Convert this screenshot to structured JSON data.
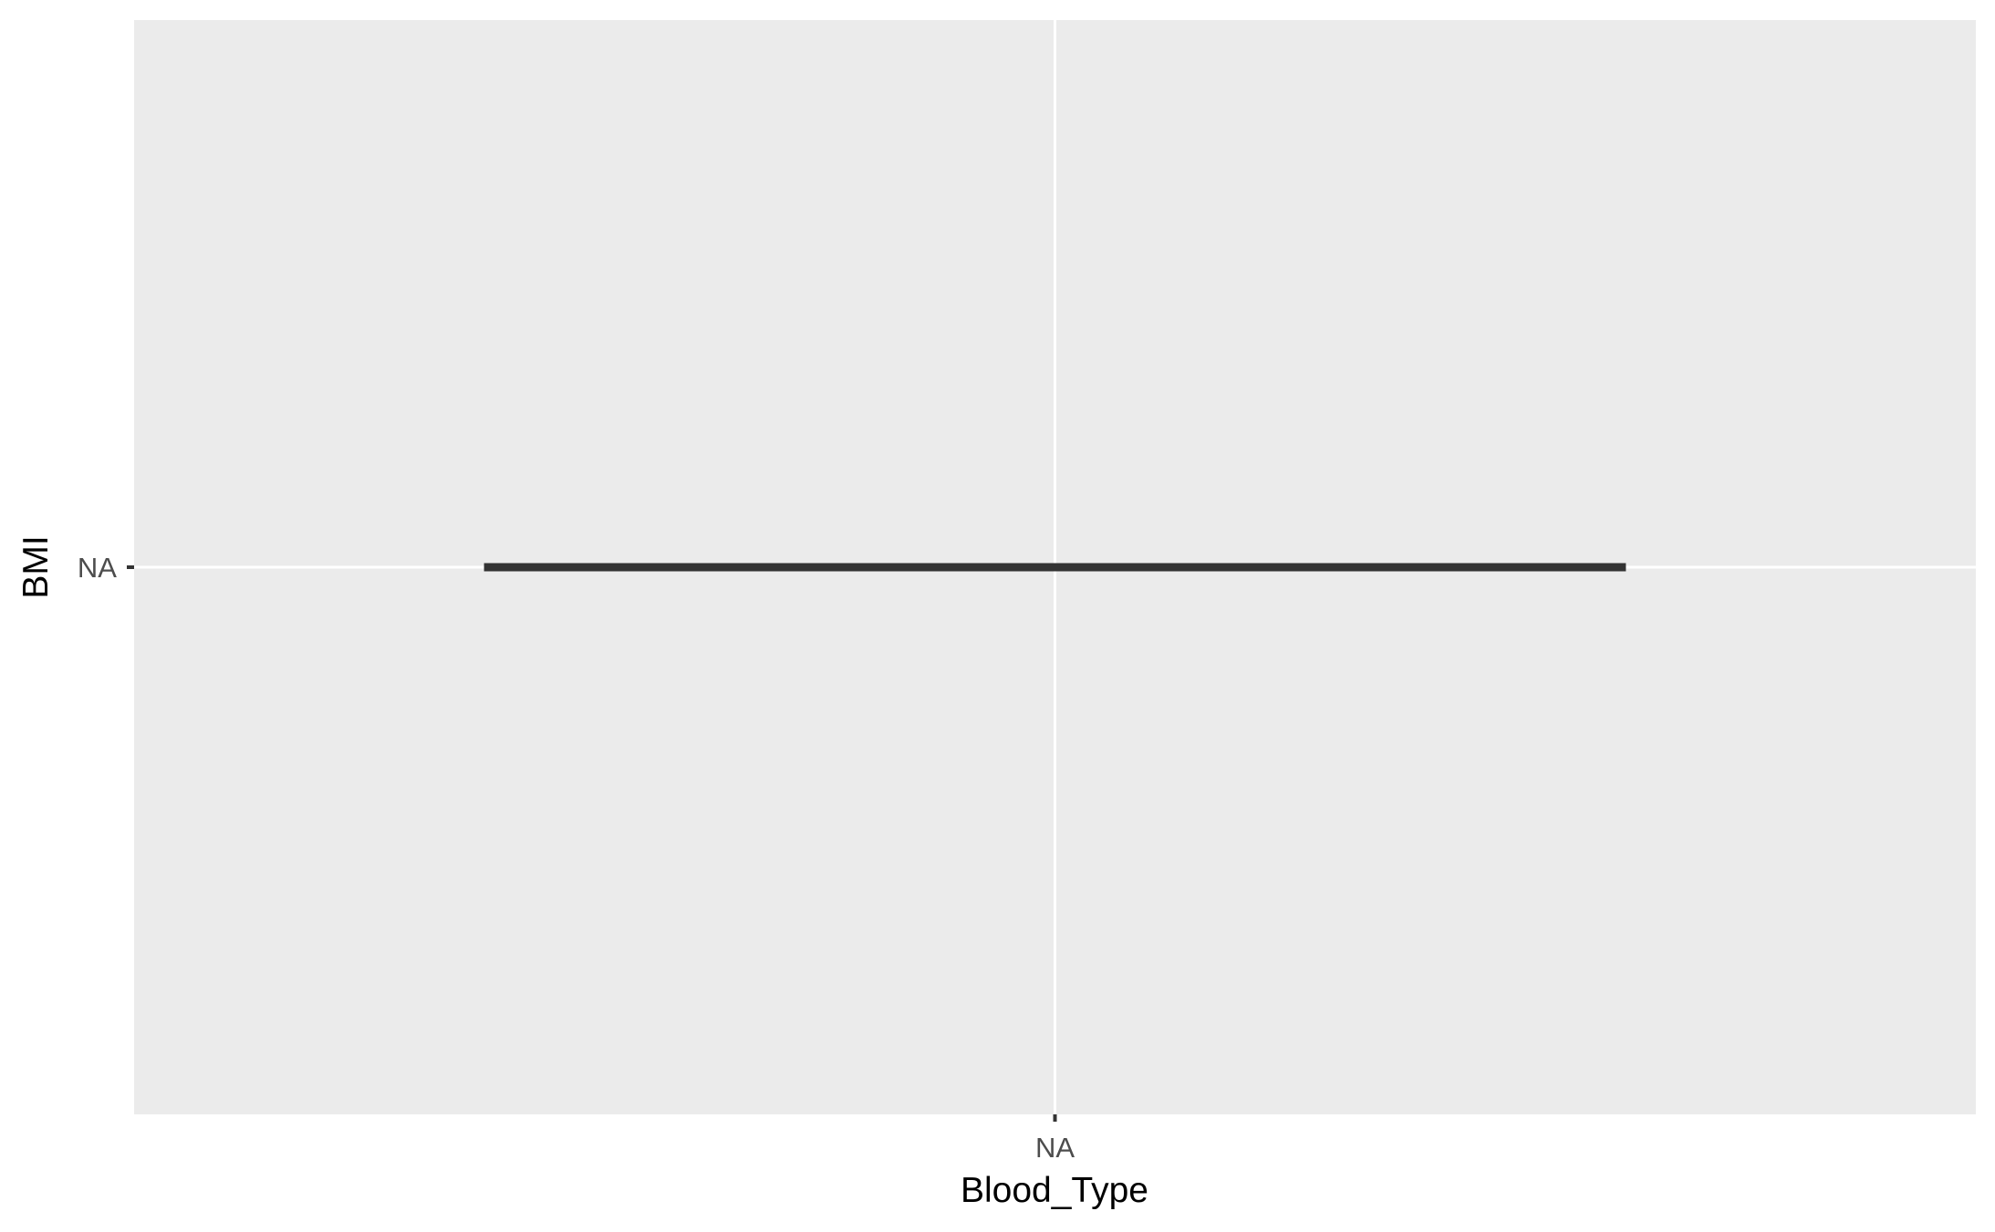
{
  "chart_data": {
    "type": "boxplot",
    "xlabel": "Blood_Type",
    "ylabel": "BMI",
    "categories": [
      "NA"
    ],
    "y_ticks": [
      "NA"
    ],
    "series": [
      {
        "category": "NA",
        "median": "NA",
        "q1": "NA",
        "q3": "NA",
        "whisker_low": "NA",
        "whisker_high": "NA"
      }
    ],
    "grid": true,
    "legend": "none",
    "colors": {
      "panel_background": "#EBEBEB",
      "grid_line": "#FFFFFF",
      "box_line": "#333333",
      "tick_mark": "#333333",
      "tick_label": "#4D4D4D",
      "axis_title": "#000000"
    }
  }
}
